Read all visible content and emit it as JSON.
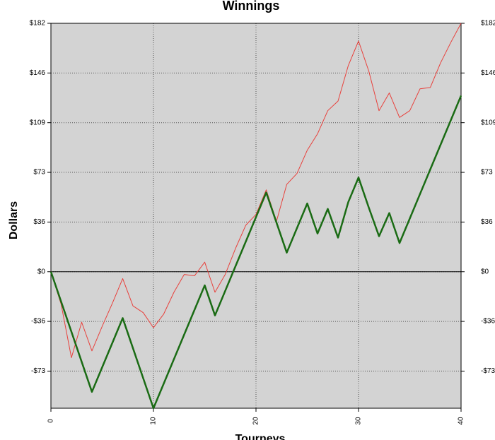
{
  "chart_data": {
    "type": "line",
    "title": "Winnings",
    "x_label": "Tourneys",
    "y_label": "Dollars",
    "x": [
      0,
      1,
      2,
      3,
      4,
      5,
      6,
      7,
      8,
      9,
      10,
      11,
      12,
      13,
      14,
      15,
      16,
      17,
      18,
      19,
      20,
      21,
      22,
      23,
      24,
      25,
      26,
      27,
      28,
      29,
      30,
      31,
      32,
      33,
      34,
      35,
      36,
      37,
      38,
      39,
      40
    ],
    "xlim": [
      0,
      40
    ],
    "xticks": [
      0,
      10,
      20,
      30,
      40
    ],
    "ylim": [
      -100,
      182
    ],
    "yticks": [
      {
        "value": -72.8,
        "label": "-$73"
      },
      {
        "value": -36.4,
        "label": "-$36"
      },
      {
        "value": 0,
        "label": "$0"
      },
      {
        "value": 36.4,
        "label": "$36"
      },
      {
        "value": 72.8,
        "label": "$73"
      },
      {
        "value": 109.2,
        "label": "$109"
      },
      {
        "value": 145.6,
        "label": "$146"
      },
      {
        "value": 182,
        "label": "$182"
      }
    ],
    "grid": true,
    "background": "#d3d3d3",
    "series": [
      {
        "color": "#e8413c",
        "width": 1,
        "values": [
          0,
          -24,
          -63,
          -37,
          -58,
          -40,
          -23,
          -5,
          -25,
          -30,
          -41,
          -31,
          -15,
          -2,
          -3,
          7,
          -15,
          -2,
          17,
          34,
          42,
          60,
          37,
          64,
          72,
          89,
          101,
          118,
          125,
          151,
          169,
          147,
          118,
          131,
          113,
          118,
          134,
          135,
          153,
          168,
          182
        ]
      },
      {
        "color": "#1a6b14",
        "width": 2.5,
        "values": [
          0,
          -22,
          -44,
          -66,
          -88,
          -70,
          -52,
          -34,
          -56,
          -78,
          -100,
          -82,
          -64,
          -46,
          -28,
          -10,
          -32,
          -14,
          4,
          22,
          40,
          58,
          36,
          14,
          32,
          50,
          28,
          46,
          25,
          51,
          69,
          47,
          26,
          43,
          21,
          39,
          57,
          75,
          93,
          111,
          129
        ]
      }
    ]
  }
}
